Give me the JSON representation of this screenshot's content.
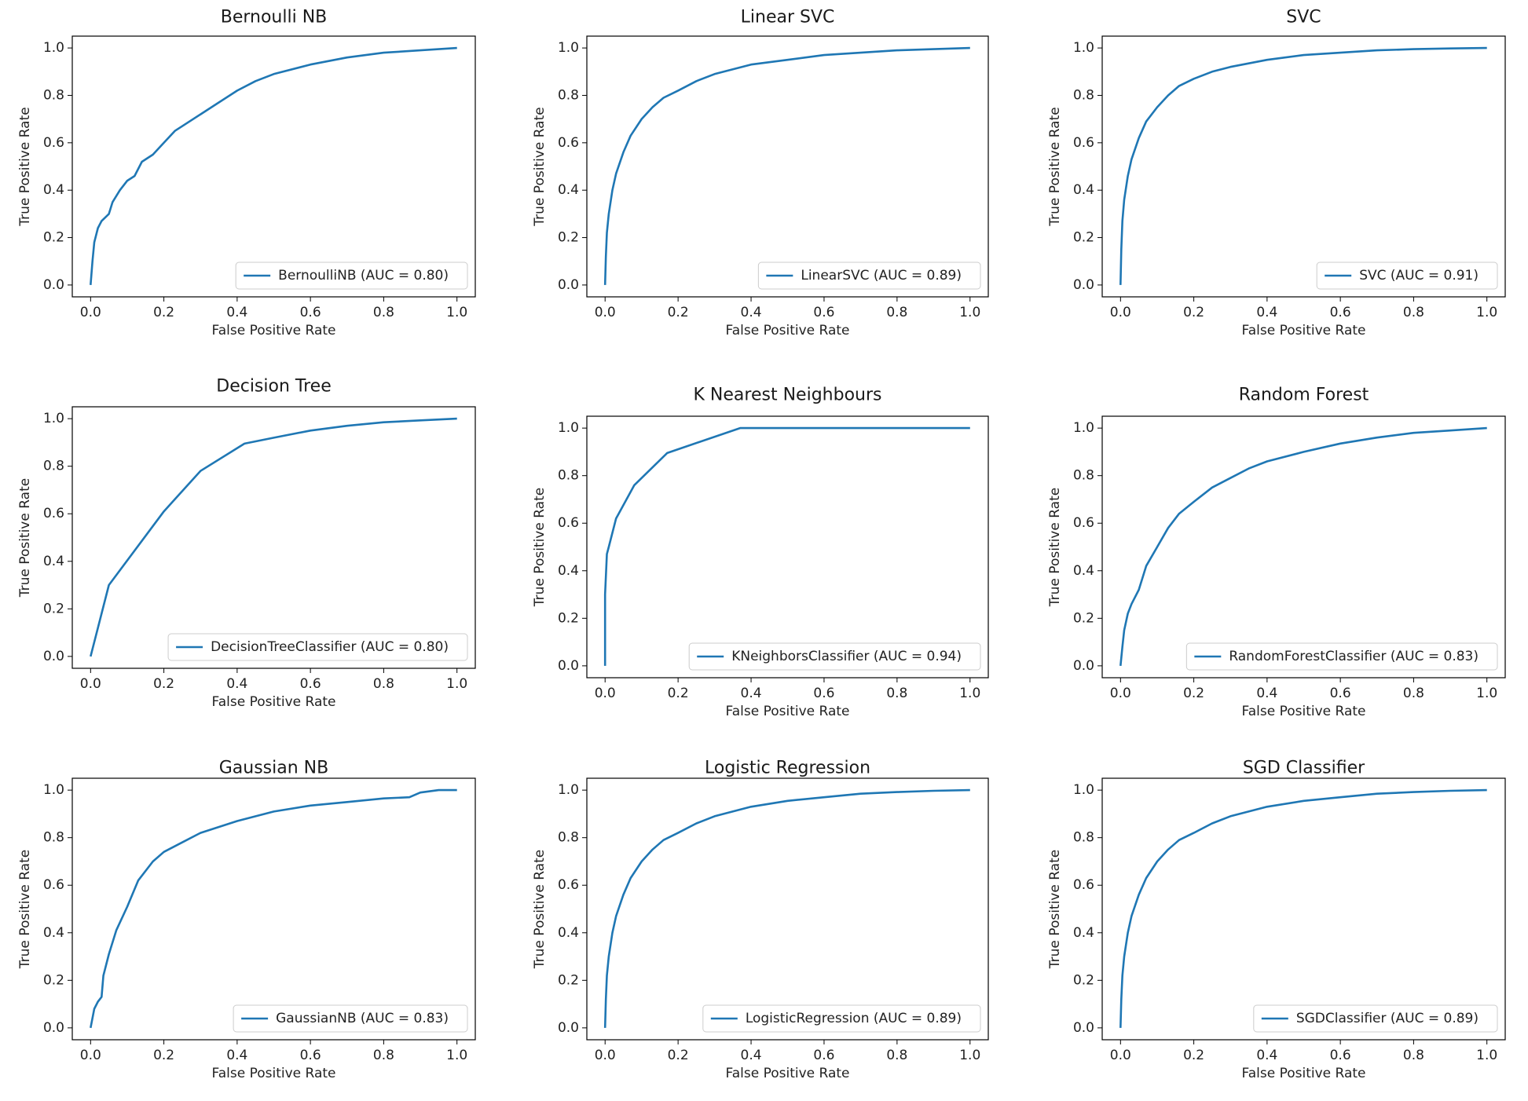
{
  "figure": {
    "colors": {
      "line": "#1f77b4",
      "axes": "#000000",
      "legend_border": "#cccccc"
    }
  },
  "chart_data": [
    {
      "type": "line",
      "title": "Bernoulli NB",
      "xlabel": "False Positive Rate",
      "ylabel": "True Positive Rate",
      "xlim": [
        0,
        1
      ],
      "ylim": [
        0,
        1
      ],
      "xticks": [
        "0.0",
        "0.2",
        "0.4",
        "0.6",
        "0.8",
        "1.0"
      ],
      "yticks": [
        "0.0",
        "0.2",
        "0.4",
        "0.6",
        "0.8",
        "1.0"
      ],
      "legend": "BernoulliNB (AUC = 0.80)",
      "legend_loc": "lower right",
      "x": [
        0,
        0.005,
        0.01,
        0.02,
        0.03,
        0.05,
        0.06,
        0.08,
        0.1,
        0.12,
        0.14,
        0.17,
        0.2,
        0.23,
        0.25,
        0.3,
        0.35,
        0.4,
        0.45,
        0.5,
        0.6,
        0.7,
        0.8,
        0.9,
        1.0
      ],
      "y": [
        0,
        0.1,
        0.18,
        0.24,
        0.27,
        0.3,
        0.35,
        0.4,
        0.44,
        0.46,
        0.52,
        0.55,
        0.6,
        0.65,
        0.67,
        0.72,
        0.77,
        0.82,
        0.86,
        0.89,
        0.93,
        0.96,
        0.98,
        0.99,
        1.0
      ]
    },
    {
      "type": "line",
      "title": "Linear SVC",
      "xlabel": "False Positive Rate",
      "ylabel": "True Positive Rate",
      "xlim": [
        0,
        1
      ],
      "ylim": [
        0,
        1
      ],
      "xticks": [
        "0.0",
        "0.2",
        "0.4",
        "0.6",
        "0.8",
        "1.0"
      ],
      "yticks": [
        "0.0",
        "0.2",
        "0.4",
        "0.6",
        "0.8",
        "1.0"
      ],
      "legend": "LinearSVC (AUC = 0.89)",
      "legend_loc": "lower right",
      "x": [
        0,
        0.002,
        0.005,
        0.01,
        0.02,
        0.03,
        0.05,
        0.07,
        0.1,
        0.13,
        0.16,
        0.2,
        0.25,
        0.3,
        0.4,
        0.5,
        0.6,
        0.7,
        0.8,
        0.9,
        1.0
      ],
      "y": [
        0,
        0.12,
        0.22,
        0.3,
        0.4,
        0.47,
        0.56,
        0.63,
        0.7,
        0.75,
        0.79,
        0.82,
        0.86,
        0.89,
        0.93,
        0.95,
        0.97,
        0.98,
        0.99,
        0.995,
        1.0
      ]
    },
    {
      "type": "line",
      "title": "SVC",
      "xlabel": "False Positive Rate",
      "ylabel": "True Positive Rate",
      "xlim": [
        0,
        1
      ],
      "ylim": [
        0,
        1
      ],
      "xticks": [
        "0.0",
        "0.2",
        "0.4",
        "0.6",
        "0.8",
        "1.0"
      ],
      "yticks": [
        "0.0",
        "0.2",
        "0.4",
        "0.6",
        "0.8",
        "1.0"
      ],
      "legend": "SVC (AUC = 0.91)",
      "legend_loc": "lower right",
      "x": [
        0,
        0.002,
        0.005,
        0.01,
        0.02,
        0.03,
        0.05,
        0.07,
        0.1,
        0.13,
        0.16,
        0.2,
        0.25,
        0.3,
        0.4,
        0.5,
        0.6,
        0.7,
        0.8,
        0.9,
        1.0
      ],
      "y": [
        0,
        0.15,
        0.27,
        0.36,
        0.46,
        0.53,
        0.62,
        0.69,
        0.75,
        0.8,
        0.84,
        0.87,
        0.9,
        0.92,
        0.95,
        0.97,
        0.98,
        0.99,
        0.995,
        0.998,
        1.0
      ]
    },
    {
      "type": "line",
      "title": "Decision Tree",
      "xlabel": "False Positive Rate",
      "ylabel": "True Positive Rate",
      "xlim": [
        0,
        1
      ],
      "ylim": [
        0,
        1
      ],
      "xticks": [
        "0.0",
        "0.2",
        "0.4",
        "0.6",
        "0.8",
        "1.0"
      ],
      "yticks": [
        "0.0",
        "0.2",
        "0.4",
        "0.6",
        "0.8",
        "1.0"
      ],
      "legend": "DecisionTreeClassifier (AUC = 0.80)",
      "legend_loc": "lower right",
      "x": [
        0,
        0.05,
        0.2,
        0.3,
        0.42,
        0.5,
        0.6,
        0.7,
        0.8,
        0.9,
        1.0
      ],
      "y": [
        0,
        0.3,
        0.61,
        0.78,
        0.895,
        0.92,
        0.95,
        0.97,
        0.985,
        0.993,
        1.0
      ]
    },
    {
      "type": "line",
      "title": "K Nearest Neighbours",
      "xlabel": "False Positive Rate",
      "ylabel": "True Positive Rate",
      "xlim": [
        0,
        1
      ],
      "ylim": [
        0,
        1
      ],
      "xticks": [
        "0.0",
        "0.2",
        "0.4",
        "0.6",
        "0.8",
        "1.0"
      ],
      "yticks": [
        "0.0",
        "0.2",
        "0.4",
        "0.6",
        "0.8",
        "1.0"
      ],
      "legend": "KNeighborsClassifier (AUC = 0.94)",
      "legend_loc": "lower right",
      "x": [
        0,
        0.0,
        0.005,
        0.01,
        0.03,
        0.08,
        0.17,
        0.37,
        1.0
      ],
      "y": [
        0,
        0.3,
        0.47,
        0.5,
        0.62,
        0.76,
        0.895,
        1.0,
        1.0
      ]
    },
    {
      "type": "line",
      "title": "Random Forest",
      "xlabel": "False Positive Rate",
      "ylabel": "True Positive Rate",
      "xlim": [
        0,
        1
      ],
      "ylim": [
        0,
        1
      ],
      "xticks": [
        "0.0",
        "0.2",
        "0.4",
        "0.6",
        "0.8",
        "1.0"
      ],
      "yticks": [
        "0.0",
        "0.2",
        "0.4",
        "0.6",
        "0.8",
        "1.0"
      ],
      "legend": "RandomForestClassifier (AUC = 0.83)",
      "legend_loc": "lower right",
      "x": [
        0,
        0.005,
        0.01,
        0.02,
        0.03,
        0.05,
        0.07,
        0.1,
        0.13,
        0.16,
        0.2,
        0.25,
        0.3,
        0.35,
        0.4,
        0.5,
        0.6,
        0.7,
        0.8,
        0.9,
        1.0
      ],
      "y": [
        0,
        0.08,
        0.15,
        0.22,
        0.26,
        0.32,
        0.42,
        0.5,
        0.58,
        0.64,
        0.69,
        0.75,
        0.79,
        0.83,
        0.86,
        0.9,
        0.935,
        0.96,
        0.98,
        0.99,
        1.0
      ]
    },
    {
      "type": "line",
      "title": "Gaussian NB",
      "xlabel": "False Positive Rate",
      "ylabel": "True Positive Rate",
      "xlim": [
        0,
        1
      ],
      "ylim": [
        0,
        1
      ],
      "xticks": [
        "0.0",
        "0.2",
        "0.4",
        "0.6",
        "0.8",
        "1.0"
      ],
      "yticks": [
        "0.0",
        "0.2",
        "0.4",
        "0.6",
        "0.8",
        "1.0"
      ],
      "legend": "GaussianNB (AUC = 0.83)",
      "legend_loc": "lower right",
      "x": [
        0,
        0.01,
        0.02,
        0.03,
        0.035,
        0.05,
        0.07,
        0.1,
        0.13,
        0.17,
        0.2,
        0.25,
        0.3,
        0.4,
        0.5,
        0.6,
        0.7,
        0.8,
        0.87,
        0.9,
        0.95,
        1.0
      ],
      "y": [
        0,
        0.08,
        0.11,
        0.13,
        0.22,
        0.31,
        0.41,
        0.51,
        0.62,
        0.7,
        0.74,
        0.78,
        0.82,
        0.87,
        0.91,
        0.935,
        0.95,
        0.965,
        0.97,
        0.99,
        1.0,
        1.0
      ]
    },
    {
      "type": "line",
      "title": "Logistic Regression",
      "xlabel": "False Positive Rate",
      "ylabel": "True Positive Rate",
      "xlim": [
        0,
        1
      ],
      "ylim": [
        0,
        1
      ],
      "xticks": [
        "0.0",
        "0.2",
        "0.4",
        "0.6",
        "0.8",
        "1.0"
      ],
      "yticks": [
        "0.0",
        "0.2",
        "0.4",
        "0.6",
        "0.8",
        "1.0"
      ],
      "legend": "LogisticRegression (AUC = 0.89)",
      "legend_loc": "lower right",
      "x": [
        0,
        0.002,
        0.005,
        0.01,
        0.02,
        0.03,
        0.05,
        0.07,
        0.1,
        0.13,
        0.16,
        0.2,
        0.25,
        0.3,
        0.4,
        0.5,
        0.6,
        0.7,
        0.8,
        0.9,
        1.0
      ],
      "y": [
        0,
        0.12,
        0.22,
        0.3,
        0.4,
        0.47,
        0.56,
        0.63,
        0.7,
        0.75,
        0.79,
        0.82,
        0.86,
        0.89,
        0.93,
        0.955,
        0.97,
        0.985,
        0.992,
        0.997,
        1.0
      ]
    },
    {
      "type": "line",
      "title": "SGD Classifier",
      "xlabel": "False Positive Rate",
      "ylabel": "True Positive Rate",
      "xlim": [
        0,
        1
      ],
      "ylim": [
        0,
        1
      ],
      "xticks": [
        "0.0",
        "0.2",
        "0.4",
        "0.6",
        "0.8",
        "1.0"
      ],
      "yticks": [
        "0.0",
        "0.2",
        "0.4",
        "0.6",
        "0.8",
        "1.0"
      ],
      "legend": "SGDClassifier (AUC = 0.89)",
      "legend_loc": "lower right",
      "x": [
        0,
        0.002,
        0.005,
        0.01,
        0.02,
        0.03,
        0.05,
        0.07,
        0.1,
        0.13,
        0.16,
        0.2,
        0.25,
        0.3,
        0.4,
        0.5,
        0.6,
        0.7,
        0.8,
        0.9,
        1.0
      ],
      "y": [
        0,
        0.12,
        0.22,
        0.3,
        0.4,
        0.47,
        0.56,
        0.63,
        0.7,
        0.75,
        0.79,
        0.82,
        0.86,
        0.89,
        0.93,
        0.955,
        0.97,
        0.985,
        0.992,
        0.997,
        1.0
      ]
    }
  ]
}
